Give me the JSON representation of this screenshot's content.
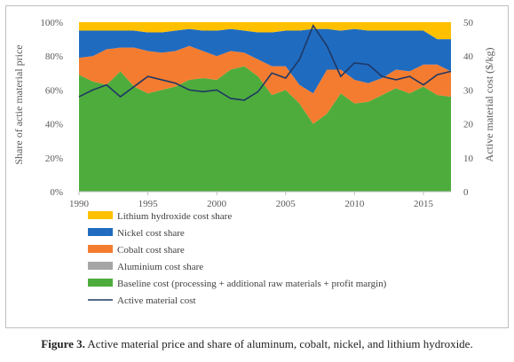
{
  "figure": {
    "caption_label": "Figure 3.",
    "caption_text": "Active material price and share of aluminum, cobalt, nickel, and lithium hydroxide."
  },
  "chart_data": {
    "type": "area",
    "title": "",
    "xlabel": "",
    "ylabel": "Share of actie material price",
    "y2label": "Active material cost ($/kg)",
    "x": [
      1990,
      1991,
      1992,
      1993,
      1994,
      1995,
      1996,
      1997,
      1998,
      1999,
      2000,
      2001,
      2002,
      2003,
      2004,
      2005,
      2006,
      2007,
      2008,
      2009,
      2010,
      2011,
      2012,
      2013,
      2014,
      2015,
      2016,
      2017
    ],
    "xlim": [
      1990,
      2017
    ],
    "xticks": [
      "1990",
      "1995",
      "2000",
      "2005",
      "2010",
      "2015"
    ],
    "ylim": [
      0,
      100
    ],
    "yticks": [
      "0%",
      "20%",
      "40%",
      "60%",
      "80%",
      "100%"
    ],
    "y2lim": [
      0,
      50
    ],
    "y2ticks": [
      "0",
      "10",
      "20",
      "30",
      "40",
      "50"
    ],
    "grid": false,
    "legend_position": "bottom",
    "stacked_series": [
      {
        "name": "Baseline cost (processing + additional raw materials + profit margin)",
        "color": "#4eac3c",
        "values": [
          69,
          65,
          63,
          71,
          62,
          58,
          60,
          62,
          66,
          67,
          66,
          72,
          74,
          68,
          57,
          60,
          52,
          40,
          46,
          58,
          52,
          53,
          57,
          61,
          58,
          62,
          57,
          56
        ]
      },
      {
        "name": "Aluminium cost share",
        "color": "#a5a5a5",
        "values": [
          0,
          0,
          0,
          0,
          0,
          0,
          0,
          0,
          0,
          0,
          0,
          0,
          0,
          0,
          0,
          0,
          0,
          0,
          0,
          0,
          0,
          0,
          0,
          0,
          0,
          0,
          0,
          0
        ]
      },
      {
        "name": "Cobalt cost share",
        "color": "#f47c30",
        "values": [
          10,
          15,
          21,
          14,
          23,
          25,
          22,
          21,
          20,
          16,
          14,
          11,
          8,
          10,
          17,
          14,
          11,
          18,
          26,
          14,
          14,
          11,
          10,
          11,
          13,
          13,
          18,
          15
        ]
      },
      {
        "name": "Nickel cost share",
        "color": "#1f6bc0",
        "values": [
          16,
          15,
          11,
          10,
          10,
          11,
          12,
          12,
          10,
          12,
          15,
          13,
          13,
          16,
          20,
          21,
          32,
          38,
          24,
          23,
          30,
          31,
          28,
          23,
          24,
          20,
          15,
          19
        ]
      },
      {
        "name": "Lithium hydroxide cost share",
        "color": "#ffc000",
        "values": [
          5,
          5,
          5,
          5,
          5,
          6,
          6,
          5,
          4,
          5,
          5,
          4,
          5,
          6,
          6,
          5,
          5,
          4,
          4,
          5,
          4,
          5,
          5,
          5,
          5,
          5,
          10,
          10
        ]
      }
    ],
    "line_series": [
      {
        "name": "Active material cost",
        "color": "#1f3864",
        "axis": "right",
        "values": [
          28,
          30,
          31.5,
          28,
          31,
          34,
          33,
          32,
          30,
          29.5,
          30,
          27.5,
          27,
          29.5,
          35,
          33.5,
          39,
          49,
          43,
          34,
          38,
          37.5,
          34,
          33,
          34,
          31.5,
          34.5,
          35.5
        ]
      }
    ],
    "legend_order": [
      "Lithium hydroxide cost share",
      "Nickel cost share",
      "Cobalt cost share",
      "Aluminium cost share",
      "Baseline cost (processing + additional raw materials + profit margin)",
      "Active material cost"
    ]
  }
}
